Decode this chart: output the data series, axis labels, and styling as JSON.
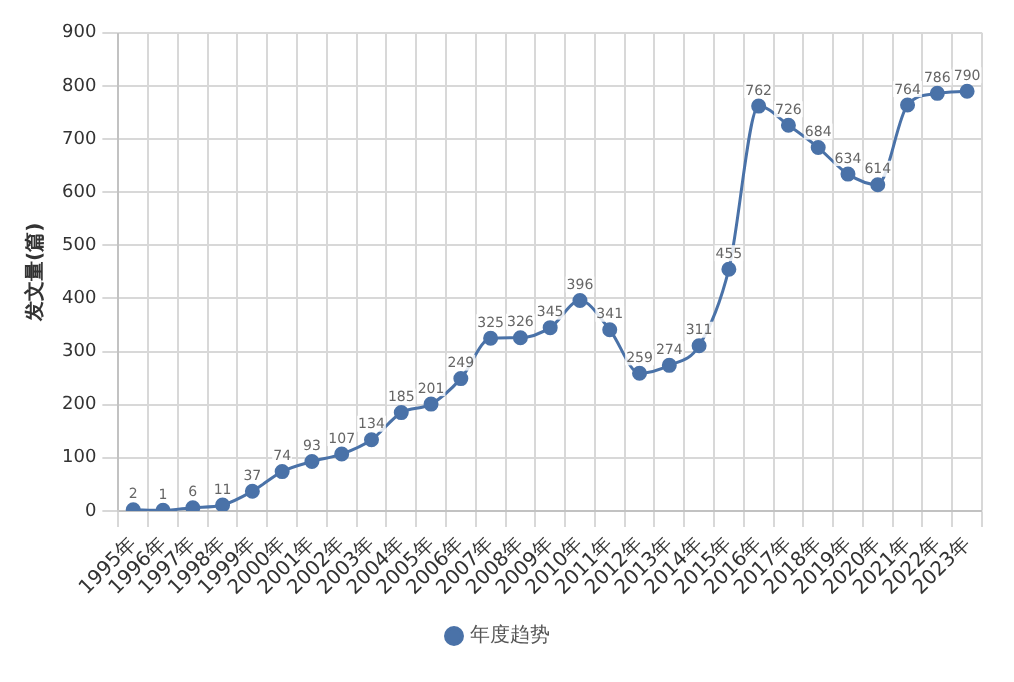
{
  "chart_data": {
    "type": "line",
    "ylabel": "发文量(篇)",
    "categories": [
      "1995年",
      "1996年",
      "1997年",
      "1998年",
      "1999年",
      "2000年",
      "2001年",
      "2002年",
      "2003年",
      "2004年",
      "2005年",
      "2006年",
      "2007年",
      "2008年",
      "2009年",
      "2010年",
      "2011年",
      "2012年",
      "2013年",
      "2014年",
      "2015年",
      "2016年",
      "2017年",
      "2018年",
      "2019年",
      "2020年",
      "2021年",
      "2022年",
      "2023年"
    ],
    "series": [
      {
        "name": "年度趋势",
        "color": "#4a72a8",
        "values": [
          2,
          1,
          6,
          11,
          37,
          74,
          93,
          107,
          134,
          185,
          201,
          249,
          325,
          326,
          345,
          396,
          341,
          259,
          274,
          311,
          455,
          762,
          726,
          684,
          634,
          614,
          764,
          786,
          790
        ]
      }
    ],
    "ylim": [
      0,
      900
    ],
    "yticks": [
      0,
      100,
      200,
      300,
      400,
      500,
      600,
      700,
      800,
      900
    ],
    "grid": true,
    "legend": "bottom",
    "marker": "circle",
    "line_style": "solid",
    "data_labels": true
  }
}
